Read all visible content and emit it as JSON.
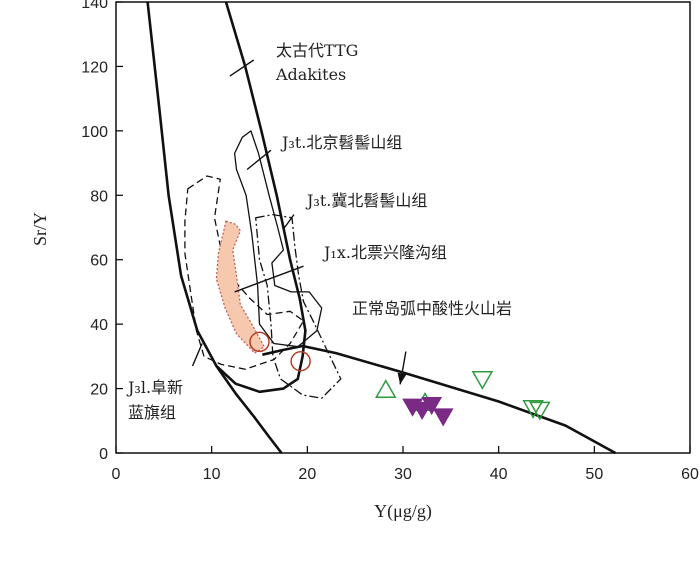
{
  "chart_data": {
    "type": "scatter",
    "xlabel": "Y(μg/g)",
    "ylabel": "Sr/Y",
    "xlim": [
      0,
      60
    ],
    "ylim": [
      0,
      140
    ],
    "x_ticks": [
      0,
      10,
      20,
      30,
      40,
      50,
      60
    ],
    "y_ticks": [
      0,
      20,
      40,
      60,
      80,
      100,
      120,
      140
    ],
    "grid": false,
    "annotations": [
      {
        "name": "ttg",
        "lines": [
          "太古代TTG",
          "Adakites"
        ]
      },
      {
        "name": "beijing",
        "lines": [
          "J₃t.北京髫髻山组"
        ]
      },
      {
        "name": "jibei",
        "lines": [
          "J₃t.冀北髫髻山组"
        ]
      },
      {
        "name": "beipiao",
        "lines": [
          "J₁x.北票兴隆沟组"
        ]
      },
      {
        "name": "arc",
        "lines": [
          "正常岛弧中酸性火山岩"
        ]
      },
      {
        "name": "fuxin",
        "lines": [
          "J₃l.阜新",
          "蓝旗组"
        ]
      }
    ],
    "series": [
      {
        "marker": "circle-open",
        "color": "#b5402a",
        "points": [
          [
            15,
            34.5
          ],
          [
            19.3,
            28.5
          ]
        ]
      },
      {
        "marker": "triangle-up-open",
        "color": "#2e9a3e",
        "points": [
          [
            28.2,
            19.5
          ],
          [
            32.3,
            15.5
          ]
        ]
      },
      {
        "marker": "triangle-down-open",
        "color": "#2e9a3e",
        "points": [
          [
            38.3,
            23
          ],
          [
            43.6,
            14
          ],
          [
            44.3,
            13.5
          ]
        ]
      },
      {
        "marker": "triangle-down-filled",
        "color": "#7a2a84",
        "points": [
          [
            31,
            14.5
          ],
          [
            32,
            13.5
          ],
          [
            33,
            15
          ],
          [
            34.2,
            11.5
          ]
        ]
      }
    ]
  }
}
